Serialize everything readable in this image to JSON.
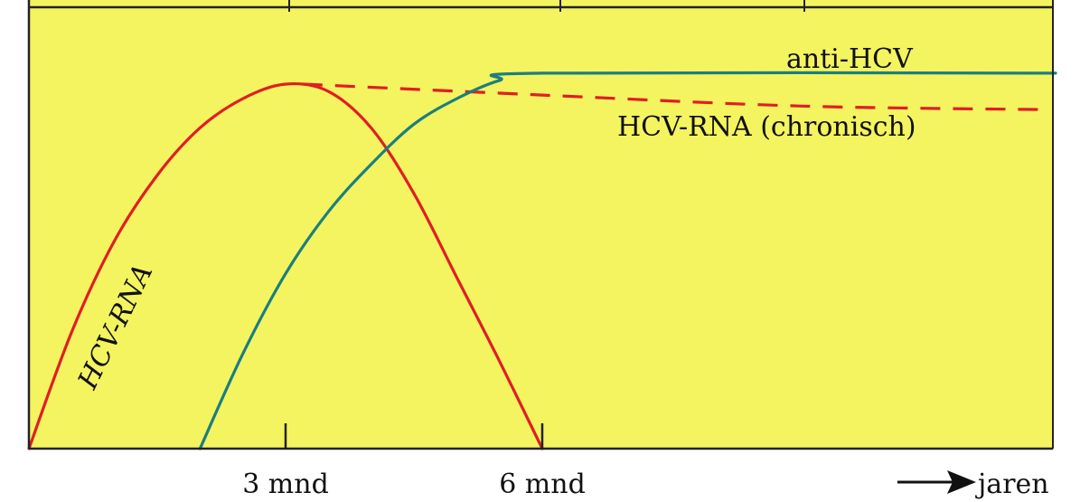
{
  "colors": {
    "background": "#f4f460",
    "axis": "#222222",
    "hcv_rna": "#e01e24",
    "anti_hcv": "#1a7f7e"
  },
  "chart_data": {
    "type": "line",
    "x_unit": "months",
    "x_ticks": [
      {
        "value": 3,
        "label": "3 mnd"
      },
      {
        "value": 6,
        "label": "6 mnd"
      }
    ],
    "x_axis_end_label": "jaren",
    "xlim": [
      0,
      12
    ],
    "ylim": [
      0,
      1
    ],
    "grid": false,
    "series": [
      {
        "name": "HCV-RNA",
        "style": "solid",
        "color_key": "hcv_rna",
        "points": [
          [
            0,
            0
          ],
          [
            0.5,
            0.32
          ],
          [
            1,
            0.57
          ],
          [
            1.5,
            0.75
          ],
          [
            2,
            0.88
          ],
          [
            2.5,
            0.96
          ],
          [
            3,
            1.0
          ],
          [
            3.5,
            0.98
          ],
          [
            4,
            0.88
          ],
          [
            4.5,
            0.7
          ],
          [
            5,
            0.47
          ],
          [
            5.5,
            0.24
          ],
          [
            6,
            0
          ]
        ]
      },
      {
        "name": "HCV-RNA (chronisch)",
        "style": "dashed",
        "color_key": "hcv_rna",
        "points": [
          [
            3.2,
            1.0
          ],
          [
            6,
            0.97
          ],
          [
            9,
            0.94
          ],
          [
            11.9,
            0.93
          ]
        ]
      },
      {
        "name": "anti-HCV",
        "style": "solid",
        "color_key": "anti_hcv",
        "points": [
          [
            2,
            0
          ],
          [
            2.5,
            0.26
          ],
          [
            3,
            0.48
          ],
          [
            3.5,
            0.65
          ],
          [
            4,
            0.78
          ],
          [
            4.5,
            0.89
          ],
          [
            5,
            0.96
          ],
          [
            5.5,
            1.01
          ],
          [
            6,
            1.03
          ],
          [
            12,
            1.03
          ]
        ]
      }
    ],
    "labels": {
      "hcv_rna": "HCV-RNA",
      "anti_hcv": "anti-HCV",
      "hcv_rna_chronic": "HCV-RNA (chronisch)"
    }
  }
}
